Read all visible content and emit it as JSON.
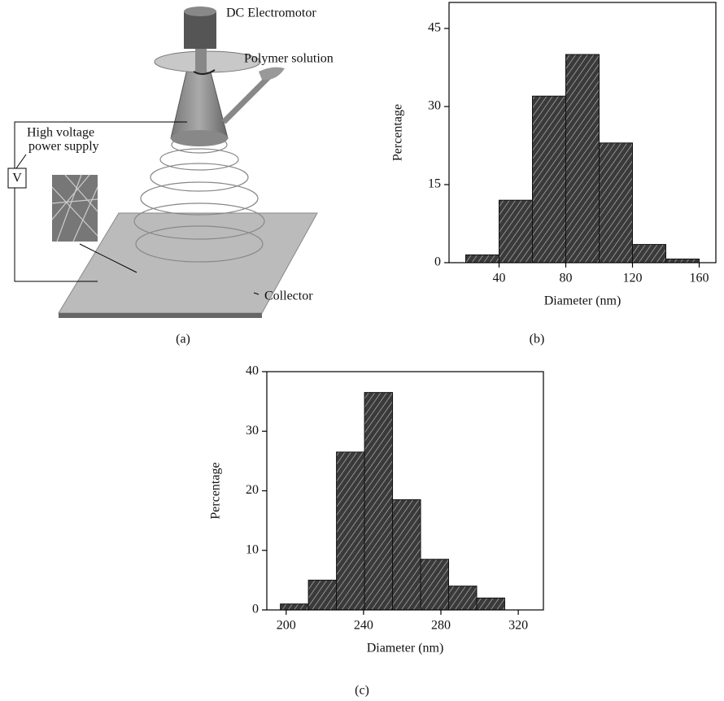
{
  "diagram": {
    "motor_label": "DC Electromotor",
    "solution_label": "Polymer solution",
    "supply_label": [
      "High voltage",
      "power supply"
    ],
    "voltmeter_label": "V",
    "collector_label": "Collector",
    "caption": "(a)"
  },
  "chart_data": [
    {
      "type": "histogram",
      "caption": "(b)",
      "xlabel": "Diameter (nm)",
      "ylabel": "Percentage",
      "bins": [
        20,
        40,
        60,
        80,
        100,
        120,
        140,
        160
      ],
      "values": [
        1.5,
        12,
        32,
        40,
        23,
        3.5,
        0.7
      ],
      "color": "#3a3a3a",
      "xlim": [
        10,
        170
      ],
      "ylim": [
        0,
        50
      ],
      "xticks": [
        40,
        80,
        120,
        160
      ],
      "yticks": [
        0,
        15,
        30,
        45
      ]
    },
    {
      "type": "histogram",
      "caption": "(c)",
      "xlabel": "Diameter (nm)",
      "ylabel": "Percentage",
      "bins": [
        197,
        211.5,
        226,
        240.5,
        255,
        269.5,
        284,
        298.5,
        313
      ],
      "values": [
        1,
        5,
        26.5,
        36.5,
        18.5,
        8.5,
        4,
        2
      ],
      "color": "#3a3a3a",
      "xlim": [
        190,
        333
      ],
      "ylim": [
        0,
        40
      ],
      "xticks": [
        200,
        240,
        280,
        320
      ],
      "yticks": [
        0,
        10,
        20,
        30,
        40
      ]
    }
  ]
}
